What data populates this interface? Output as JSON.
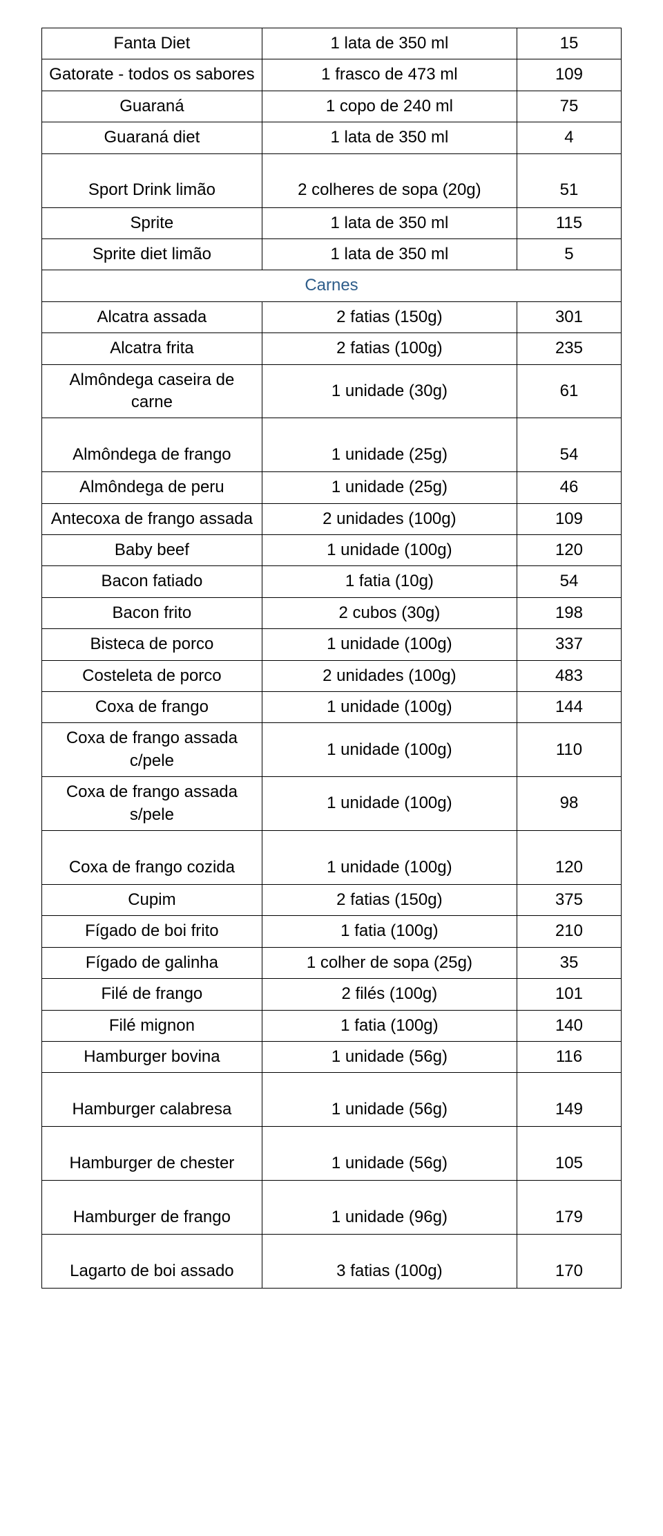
{
  "colors": {
    "text": "#000000",
    "section_header": "#2e5d8a",
    "border": "#000000",
    "background": "#ffffff"
  },
  "typography": {
    "font_family": "Comic Sans MS",
    "font_size_pt": 18
  },
  "table": {
    "columns": [
      "food",
      "portion",
      "calories"
    ],
    "col_widths_pct": [
      38,
      44,
      18
    ],
    "rows": [
      {
        "food": "Fanta Diet",
        "portion": "1 lata de 350 ml",
        "cal": "15"
      },
      {
        "food": "Gatorate - todos os sabores",
        "portion": "1 frasco de 473 ml",
        "cal": "109"
      },
      {
        "food": "Guaraná",
        "portion": "1 copo de 240 ml",
        "cal": "75"
      },
      {
        "food": "Guaraná diet",
        "portion": "1 lata de 350 ml",
        "cal": "4"
      },
      {
        "food": "Sport Drink limão",
        "portion": "2 colheres de sopa (20g)",
        "cal": "51",
        "tall": true
      },
      {
        "food": "Sprite",
        "portion": "1 lata de 350 ml",
        "cal": "115"
      },
      {
        "food": "Sprite diet limão",
        "portion": "1 lata de 350 ml",
        "cal": "5"
      },
      {
        "section": "Carnes"
      },
      {
        "food": "Alcatra assada",
        "portion": "2 fatias (150g)",
        "cal": "301"
      },
      {
        "food": "Alcatra frita",
        "portion": "2 fatias (100g)",
        "cal": "235"
      },
      {
        "food": "Almôndega caseira de carne",
        "portion": "1 unidade (30g)",
        "cal": "61"
      },
      {
        "food": "Almôndega de frango",
        "portion": "1 unidade (25g)",
        "cal": "54",
        "tall": true
      },
      {
        "food": "Almôndega de peru",
        "portion": "1 unidade (25g)",
        "cal": "46"
      },
      {
        "food": "Antecoxa de frango assada",
        "portion": "2 unidades (100g)",
        "cal": "109"
      },
      {
        "food": "Baby beef",
        "portion": "1 unidade (100g)",
        "cal": "120"
      },
      {
        "food": "Bacon fatiado",
        "portion": "1 fatia (10g)",
        "cal": "54"
      },
      {
        "food": "Bacon frito",
        "portion": "2 cubos (30g)",
        "cal": "198"
      },
      {
        "food": "Bisteca de porco",
        "portion": "1 unidade (100g)",
        "cal": "337"
      },
      {
        "food": "Costeleta de porco",
        "portion": "2 unidades (100g)",
        "cal": "483"
      },
      {
        "food": "Coxa de frango",
        "portion": "1 unidade (100g)",
        "cal": "144"
      },
      {
        "food": "Coxa de frango assada c/pele",
        "portion": "1 unidade (100g)",
        "cal": "110"
      },
      {
        "food": "Coxa de frango assada s/pele",
        "portion": "1 unidade (100g)",
        "cal": "98"
      },
      {
        "food": "Coxa de frango cozida",
        "portion": "1 unidade (100g)",
        "cal": "120",
        "tall": true
      },
      {
        "food": "Cupim",
        "portion": "2 fatias (150g)",
        "cal": "375"
      },
      {
        "food": "Fígado de boi frito",
        "portion": "1 fatia (100g)",
        "cal": "210"
      },
      {
        "food": "Fígado de galinha",
        "portion": "1 colher de sopa (25g)",
        "cal": "35"
      },
      {
        "food": "Filé de frango",
        "portion": "2 filés (100g)",
        "cal": "101"
      },
      {
        "food": "Filé mignon",
        "portion": "1 fatia (100g)",
        "cal": "140"
      },
      {
        "food": "Hamburger bovina",
        "portion": "1 unidade (56g)",
        "cal": "116"
      },
      {
        "food": "Hamburger calabresa",
        "portion": "1 unidade (56g)",
        "cal": "149",
        "tall": true
      },
      {
        "food": "Hamburger de chester",
        "portion": "1 unidade (56g)",
        "cal": "105",
        "tall": true
      },
      {
        "food": "Hamburger de frango",
        "portion": "1 unidade (96g)",
        "cal": "179",
        "tall": true
      },
      {
        "food": "Lagarto de boi assado",
        "portion": "3 fatias (100g)",
        "cal": "170",
        "tall": true
      }
    ]
  }
}
